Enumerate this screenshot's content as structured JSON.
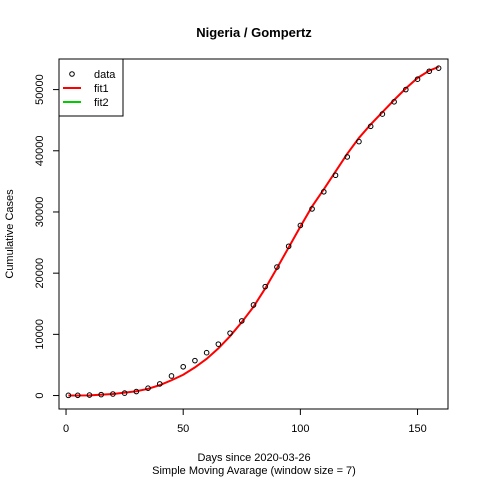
{
  "chart_data": {
    "type": "scatter",
    "title": "Nigeria / Gompertz",
    "xlabel": "Days since 2020-03-26",
    "xsublabel": "Simple Moving Avarage (window size = 7)",
    "ylabel": "Cumulative Cases",
    "xlim": [
      -3,
      163
    ],
    "ylim": [
      -2200,
      55000
    ],
    "x_ticks": [
      0,
      50,
      100,
      150
    ],
    "y_ticks": [
      0,
      10000,
      20000,
      30000,
      40000,
      50000
    ],
    "legend_position": "top-left",
    "legend": [
      {
        "label": "data",
        "kind": "circle",
        "color": "#000000"
      },
      {
        "label": "fit1",
        "kind": "line",
        "color": "#ff0000"
      },
      {
        "label": "fit2",
        "kind": "line",
        "color": "#00cd00"
      }
    ],
    "series": [
      {
        "name": "data",
        "style": "points",
        "color": "#000000",
        "x": [
          1,
          5,
          10,
          15,
          20,
          25,
          30,
          35,
          40,
          45,
          50,
          55,
          60,
          65,
          70,
          75,
          80,
          85,
          90,
          95,
          100,
          105,
          110,
          115,
          120,
          125,
          130,
          135,
          140,
          145,
          150,
          155,
          159
        ],
        "y": [
          30,
          40,
          80,
          150,
          250,
          400,
          650,
          1200,
          1900,
          3200,
          4700,
          5700,
          7000,
          8400,
          10200,
          12200,
          14800,
          17800,
          21000,
          24400,
          27800,
          30500,
          33300,
          36000,
          39000,
          41500,
          44000,
          46000,
          48000,
          50000,
          51700,
          53000,
          53500
        ]
      },
      {
        "name": "fit1",
        "style": "line",
        "color": "#ff0000",
        "x": [
          1,
          10,
          20,
          30,
          35,
          40,
          45,
          50,
          55,
          60,
          65,
          70,
          75,
          80,
          85,
          90,
          95,
          100,
          105,
          110,
          115,
          120,
          125,
          130,
          135,
          140,
          145,
          150,
          155,
          159
        ],
        "y": [
          0,
          30,
          250,
          700,
          1100,
          1700,
          2500,
          3400,
          4600,
          6000,
          7700,
          9700,
          12000,
          14500,
          17500,
          20800,
          24200,
          27600,
          30900,
          33700,
          36600,
          39500,
          42100,
          44300,
          46300,
          48300,
          50200,
          51900,
          53100,
          53700
        ]
      },
      {
        "name": "fit2",
        "style": "line",
        "color": "#00cd00",
        "x": [],
        "y": []
      }
    ]
  }
}
